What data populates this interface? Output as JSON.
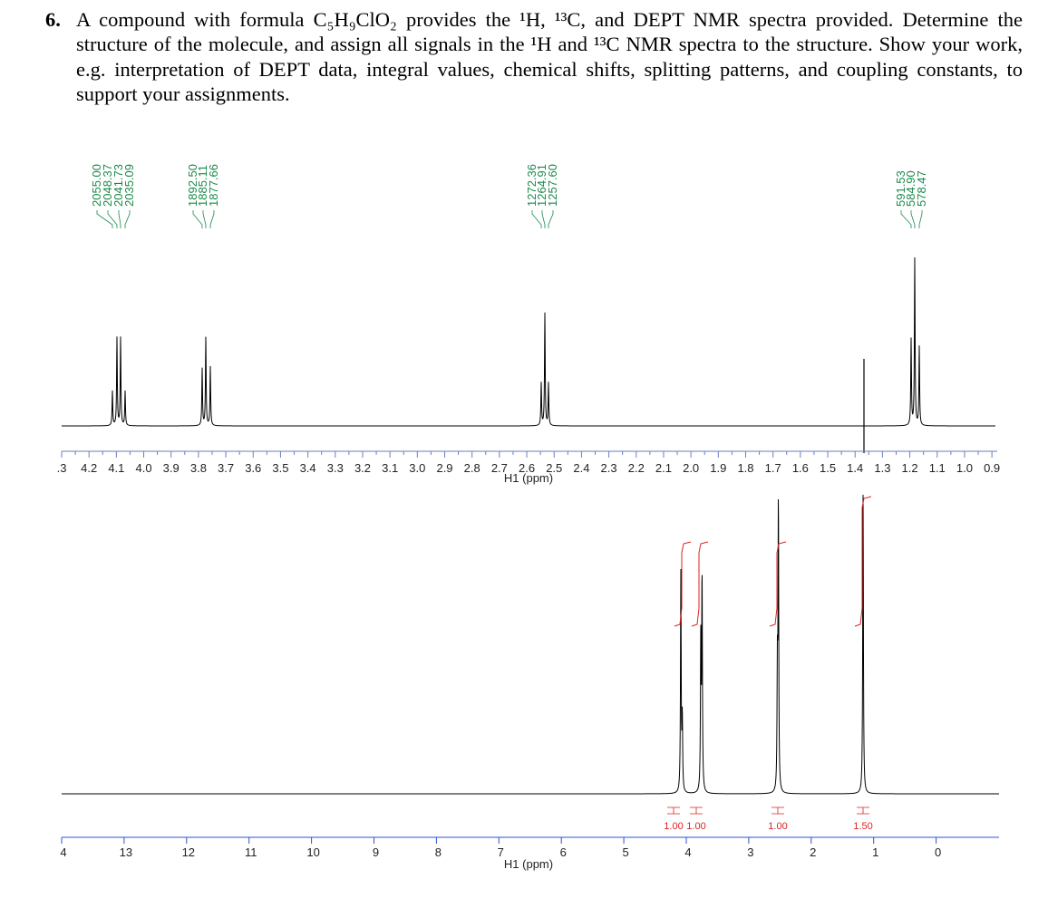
{
  "question": {
    "number": "6.",
    "text": "A compound with formula C₅H₉ClO₂ provides the ¹H, ¹³C, and DEPT NMR spectra provided. Determine the structure of the molecule, and assign all signals in the ¹H and ¹³C NMR spectra to the structure. Show your work, e.g. interpretation of DEPT data, integral values, chemical shifts, splitting patterns, and coupling constants, to support your assignments."
  },
  "spectrum_expanded": {
    "peak_labels": [
      [
        "2055.00",
        "2048.37",
        "2041.73",
        "2035.09"
      ],
      [
        "1892.50",
        "1885.11",
        "1877.66"
      ],
      [
        "1272.36",
        "1264.91",
        "1257.60"
      ],
      [
        "591.53",
        "584.90",
        "578.47"
      ]
    ],
    "axis_ticks": [
      ".3",
      "4.2",
      "4.1",
      "4.0",
      "3.9",
      "3.8",
      "3.7",
      "3.6",
      "3.5",
      "3.4",
      "3.3",
      "3.2",
      "3.1",
      "3.0",
      "2.9",
      "2.8",
      "2.7",
      "2.6",
      "2.5",
      "2.4",
      "2.3",
      "2.2",
      "2.1",
      "2.0",
      "1.9",
      "1.8",
      "1.7",
      "1.6",
      "1.5",
      "1.4",
      "1.3",
      "1.2",
      "1.1",
      "1.0",
      "0.9"
    ],
    "axis_label": "H1 (ppm)"
  },
  "spectrum_full": {
    "integrals": [
      "1.00",
      "1.00",
      "1.00",
      "1.50"
    ],
    "axis_ticks": [
      "4",
      "13",
      "12",
      "11",
      "10",
      "9",
      "8",
      "7",
      "6",
      "5",
      "4",
      "3",
      "2",
      "1",
      "0"
    ],
    "axis_label": "H1 (ppm)"
  }
}
